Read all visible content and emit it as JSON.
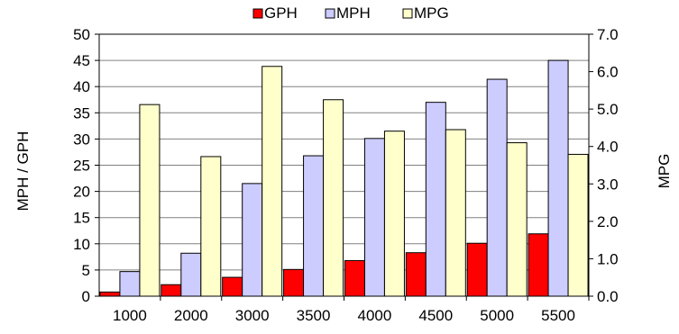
{
  "chart_data": {
    "type": "bar",
    "categories": [
      "1000",
      "2000",
      "3000",
      "3500",
      "4000",
      "4500",
      "5000",
      "5500"
    ],
    "series": [
      {
        "name": "GPH",
        "axis": "left",
        "color": "#ff0000",
        "values": [
          0.8,
          2.2,
          3.6,
          5.1,
          6.8,
          8.3,
          10.1,
          11.9
        ]
      },
      {
        "name": "MPH",
        "axis": "left",
        "color": "#ccccff",
        "values": [
          4.7,
          8.2,
          21.5,
          26.8,
          30.1,
          37.0,
          41.4,
          45.0
        ]
      },
      {
        "name": "MPG",
        "axis": "right",
        "color": "#ffffcc",
        "values": [
          5.12,
          3.73,
          6.14,
          5.25,
          4.41,
          4.45,
          4.1,
          3.79
        ]
      }
    ],
    "xlabel": "",
    "ylabel": "MPH / GPH",
    "y2label": "MPG",
    "ylim": [
      0,
      50
    ],
    "y2lim": [
      0,
      7
    ],
    "yticks": [
      "0",
      "5",
      "10",
      "15",
      "20",
      "25",
      "30",
      "35",
      "40",
      "45",
      "50"
    ],
    "y2ticks": [
      "0.0",
      "1.0",
      "2.0",
      "3.0",
      "4.0",
      "5.0",
      "6.0",
      "7.0"
    ],
    "grid": true,
    "legend_position": "top-center",
    "colors": {
      "gridline": "#808080",
      "bar_outline": "#000000",
      "background": "#ffffff"
    }
  }
}
